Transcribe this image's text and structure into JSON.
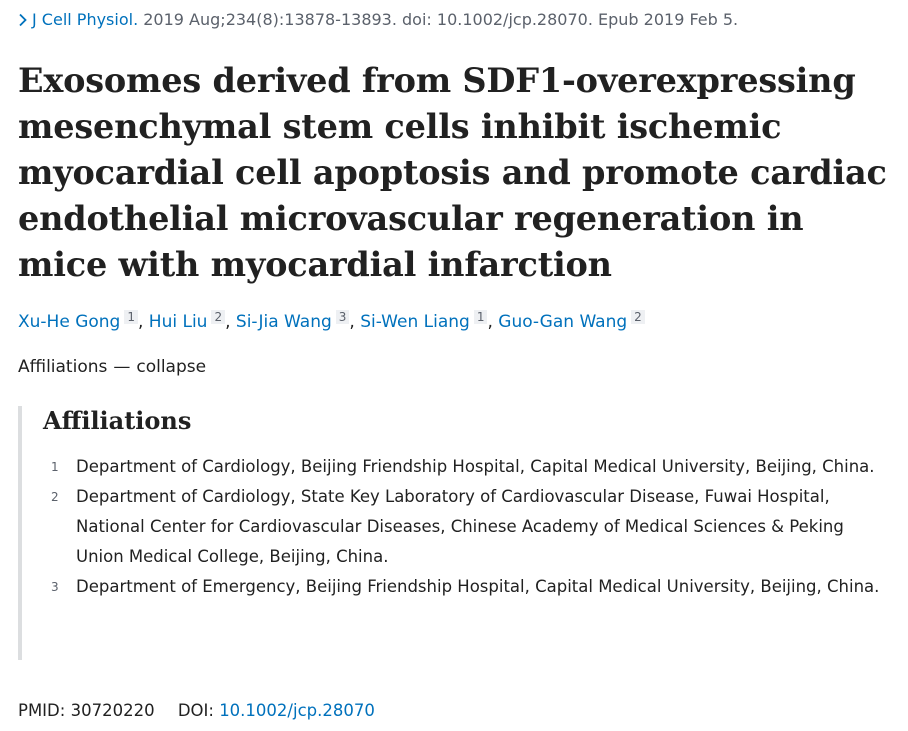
{
  "citation": {
    "journal": "J Cell Physiol.",
    "details": "2019 Aug;234(8):13878-13893. doi: 10.1002/jcp.28070. Epub 2019 Feb 5.",
    "icon": "chevron-right-icon"
  },
  "title": "Exosomes derived from SDF1-overexpressing mesenchymal stem cells inhibit ischemic myocardial cell apoptosis and promote cardiac endothelial microvascular regeneration in mice with myocardial infarction",
  "authors": [
    {
      "name": "Xu-He Gong",
      "aff": "1"
    },
    {
      "name": "Hui Liu",
      "aff": "2"
    },
    {
      "name": "Si-Jia Wang",
      "aff": "3"
    },
    {
      "name": "Si-Wen Liang",
      "aff": "1"
    },
    {
      "name": "Guo-Gan Wang",
      "aff": "2"
    }
  ],
  "affiliations_toggle": {
    "label": "Affiliations",
    "separator": "—",
    "action": "collapse"
  },
  "affiliations": {
    "heading": "Affiliations",
    "items": [
      {
        "num": "1",
        "text": "Department of Cardiology, Beijing Friendship Hospital, Capital Medical University, Beijing, China."
      },
      {
        "num": "2",
        "text": "Department of Cardiology, State Key Laboratory of Cardiovascular Disease, Fuwai Hospital, National Center for Cardiovascular Diseases, Chinese Academy of Medical Sciences & Peking Union Medical College, Beijing, China."
      },
      {
        "num": "3",
        "text": "Department of Emergency, Beijing Friendship Hospital, Capital Medical University, Beijing, China."
      }
    ]
  },
  "identifiers": {
    "pmid_label": "PMID:",
    "pmid": "30720220",
    "doi_label": "DOI:",
    "doi": "10.1002/jcp.28070"
  },
  "colors": {
    "link": "#0071bc",
    "text": "#212121",
    "muted": "#5b616b",
    "rule": "#dcdee0"
  }
}
